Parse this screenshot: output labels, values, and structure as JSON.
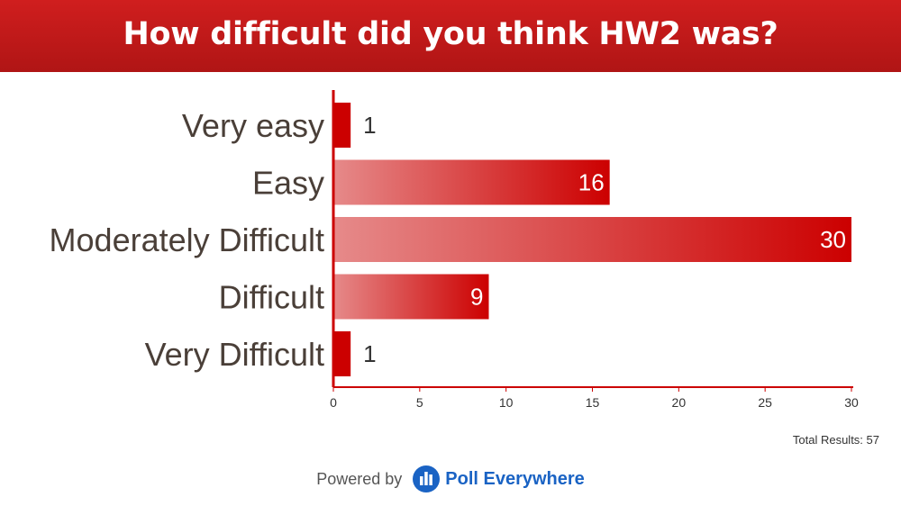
{
  "header": {
    "title": "How difficult did you think HW2 was?"
  },
  "colors": {
    "header_bg": "#c41a1a",
    "bar_dark": "#cc0000",
    "bar_light": "#e68a8a",
    "axis": "#cc0000",
    "label_text": "#4a3f38",
    "brand_blue": "#1a63c4"
  },
  "chart_data": {
    "type": "bar",
    "orientation": "horizontal",
    "categories": [
      "Very easy",
      "Easy",
      "Moderately Difficult",
      "Difficult",
      "Very Difficult"
    ],
    "values": [
      1,
      16,
      30,
      9,
      1
    ],
    "xlim": [
      0,
      30
    ],
    "xticks": [
      0,
      5,
      10,
      15,
      20,
      25,
      30
    ],
    "grid": false,
    "legend": "none"
  },
  "footer": {
    "total_label": "Total Results: 57",
    "powered_by": "Powered by",
    "brand": "Poll Everywhere",
    "logo_icon": "poll-everywhere-logo-icon"
  }
}
